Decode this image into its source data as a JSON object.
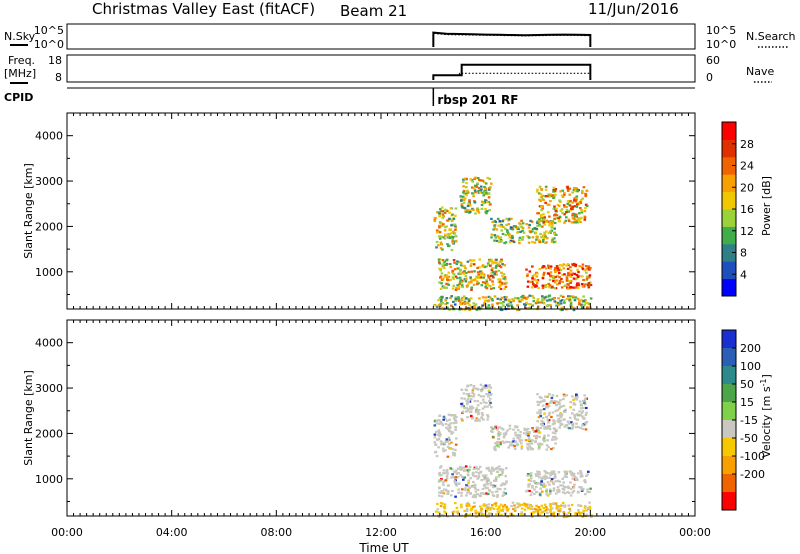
{
  "header": {
    "station": "Christmas Valley East (fitACF)",
    "beam": "Beam 21",
    "date": "11/Jun/2016"
  },
  "chart_data": [
    {
      "type": "line",
      "name": "noise-panel",
      "left_label": "N.Sky",
      "left_ticks": [
        "10^5",
        "10^0"
      ],
      "right_ticks": [
        "10^5",
        "10^0"
      ],
      "right_label": "N.Search",
      "x": [
        "14:00",
        "14:30",
        "15:00",
        "15:30",
        "16:00",
        "16:30",
        "17:00",
        "17:30",
        "18:00",
        "18:30",
        "19:00",
        "19:30",
        "20:00"
      ],
      "series": [
        {
          "name": "N.Sky",
          "values": [
            3.6,
            3.3,
            3.25,
            3.2,
            3.1,
            3.05,
            3.0,
            2.95,
            3.0,
            3.05,
            3.1,
            3.05,
            3.0
          ]
        },
        {
          "name": "N.Search",
          "values": [
            3.4,
            3.1,
            3.05,
            3.0,
            2.95,
            2.9,
            2.85,
            2.8,
            2.85,
            2.9,
            2.95,
            2.9,
            2.85
          ]
        }
      ]
    },
    {
      "type": "line",
      "name": "freq-panel",
      "left_label": "Freq.",
      "left_unit": "[MHz]",
      "left_ticks": [
        "18",
        "8"
      ],
      "right_ticks": [
        "60",
        "0"
      ],
      "right_label": "Nave",
      "cpid_label": "CPID",
      "cpid_program": "rbsp 201 RF",
      "series": [
        {
          "name": "Freq.",
          "x": [
            "14:00",
            "14:55",
            "15:05",
            "20:00"
          ],
          "values": [
            11,
            11,
            17.5,
            17.5
          ]
        },
        {
          "name": "Nave",
          "x": [
            "14:00",
            "15:00",
            "20:00"
          ],
          "values": [
            18,
            25,
            25
          ]
        }
      ]
    },
    {
      "type": "heatmap",
      "name": "power-panel",
      "xlabel": "",
      "ylabel": "Slant Range [km]",
      "yticks": [
        1000,
        2000,
        3000,
        4000
      ],
      "ylim": [
        180,
        4500
      ],
      "xlim": [
        "00:00",
        "24:00"
      ],
      "colorbar_label": "Power [dB]",
      "colorbar_ticks": [
        4,
        8,
        12,
        16,
        20,
        24,
        28
      ],
      "colorbar_range": [
        0,
        32
      ],
      "colors": [
        "#0000ff",
        "#1e4fbe",
        "#2e7f88",
        "#3fae4a",
        "#9bd23a",
        "#f0c800",
        "#f7a000",
        "#f06400",
        "#e03000",
        "#ff0000"
      ],
      "regions": [
        {
          "x": [
            "14:00",
            "14:50"
          ],
          "y": [
            1500,
            2450
          ],
          "level": 0.5
        },
        {
          "x": [
            "14:10",
            "16:45"
          ],
          "y": [
            620,
            1300
          ],
          "level": 0.55
        },
        {
          "x": [
            "15:00",
            "16:10"
          ],
          "y": [
            2300,
            3100
          ],
          "level": 0.5
        },
        {
          "x": [
            "16:10",
            "17:10"
          ],
          "y": [
            1650,
            2200
          ],
          "level": 0.45
        },
        {
          "x": [
            "17:10",
            "18:40"
          ],
          "y": [
            1650,
            2150
          ],
          "level": 0.5
        },
        {
          "x": [
            "17:55",
            "19:50"
          ],
          "y": [
            2100,
            2900
          ],
          "level": 0.6
        },
        {
          "x": [
            "17:30",
            "20:00"
          ],
          "y": [
            650,
            1200
          ],
          "level": 0.75
        },
        {
          "x": [
            "14:00",
            "20:00"
          ],
          "y": [
            180,
            500
          ],
          "level": 0.45
        }
      ]
    },
    {
      "type": "heatmap",
      "name": "velocity-panel",
      "xlabel": "Time UT",
      "ylabel": "Slant Range [km]",
      "yticks": [
        1000,
        2000,
        3000,
        4000
      ],
      "ylim": [
        180,
        4500
      ],
      "xlim": [
        "00:00",
        "24:00"
      ],
      "xticks": [
        "00:00",
        "04:00",
        "08:00",
        "12:00",
        "16:00",
        "20:00",
        "00:00"
      ],
      "colorbar_label": "Velocity",
      "colorbar_unit_prefix": "[m s",
      "colorbar_unit_exp": "-1",
      "colorbar_unit_suffix": "]",
      "colorbar_ticks": [
        "200",
        "100",
        "50",
        "15",
        "-15",
        "-50",
        "-100",
        "-200"
      ],
      "colors": [
        "#1a2fd0",
        "#2b5fb5",
        "#2d8a8a",
        "#4da54a",
        "#7fd04a",
        "#c8c8c0",
        "#f7c800",
        "#f7a000",
        "#f06400",
        "#ff0000"
      ],
      "regions": [
        {
          "x": [
            "14:00",
            "14:50"
          ],
          "y": [
            1500,
            2450
          ],
          "level": 0.5
        },
        {
          "x": [
            "14:10",
            "16:45"
          ],
          "y": [
            620,
            1300
          ],
          "level": 0.5
        },
        {
          "x": [
            "15:00",
            "16:10"
          ],
          "y": [
            2300,
            3100
          ],
          "level": 0.5
        },
        {
          "x": [
            "16:10",
            "17:10"
          ],
          "y": [
            1650,
            2200
          ],
          "level": 0.5
        },
        {
          "x": [
            "17:10",
            "18:40"
          ],
          "y": [
            1650,
            2150
          ],
          "level": 0.5
        },
        {
          "x": [
            "17:55",
            "19:50"
          ],
          "y": [
            2100,
            2900
          ],
          "level": 0.5
        },
        {
          "x": [
            "17:30",
            "20:00"
          ],
          "y": [
            650,
            1200
          ],
          "level": 0.5
        },
        {
          "x": [
            "14:00",
            "20:00"
          ],
          "y": [
            180,
            500
          ],
          "level": 0.65
        }
      ]
    }
  ]
}
